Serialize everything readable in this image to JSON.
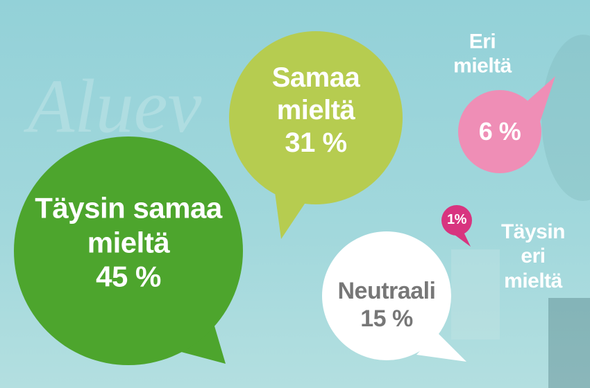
{
  "chart_data": {
    "type": "bubble",
    "categories": [
      "Täysin samaa mieltä",
      "Samaa mieltä",
      "Neutraali",
      "Eri mieltä",
      "Täysin eri mieltä"
    ],
    "values": [
      45,
      31,
      15,
      6,
      1
    ],
    "value_labels": [
      "45 %",
      "31 %",
      "15 %",
      "6 %",
      "1%"
    ],
    "colors": [
      "#4da52d",
      "#b6cc50",
      "#ffffff",
      "#ef8eb6",
      "#d8347f"
    ]
  }
}
